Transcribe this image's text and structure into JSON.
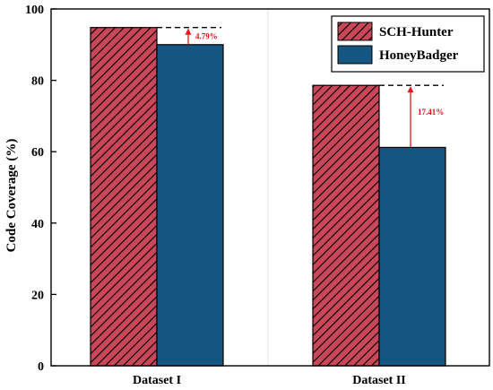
{
  "chart_data": {
    "type": "bar",
    "title": "",
    "xlabel": "",
    "ylabel": "Code Coverage (%)",
    "ylim": [
      0,
      100
    ],
    "yticks": [
      0,
      20,
      40,
      60,
      80,
      100
    ],
    "categories": [
      "Dataset I",
      "Dataset II"
    ],
    "series": [
      {
        "name": "SCH-Hunter",
        "values": [
          94.8,
          78.6
        ],
        "color": "#c8485a",
        "pattern": "diagonal-hatch"
      },
      {
        "name": "HoneyBadger",
        "values": [
          90.0,
          61.2
        ],
        "color": "#155580",
        "pattern": "solid"
      }
    ],
    "annotations": [
      {
        "category": "Dataset I",
        "text": "4.79%",
        "color": "#e8131b"
      },
      {
        "category": "Dataset II",
        "text": "17.41%",
        "color": "#e8131b"
      }
    ],
    "legend": {
      "position": "top-right"
    },
    "grid": false
  }
}
